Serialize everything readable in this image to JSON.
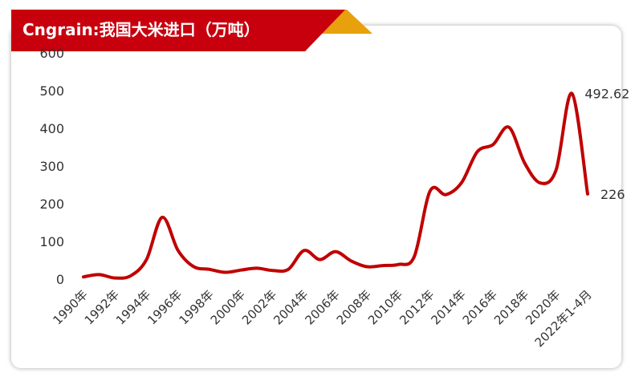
{
  "header": {
    "title": "Cngrain:我国大米进口（万吨）"
  },
  "colors": {
    "accent": "#c8000e",
    "accent_secondary": "#e8a10c",
    "line": "#c00000"
  },
  "chart_data": {
    "type": "line",
    "title": "Cngrain:我国大米进口（万吨）",
    "xlabel": "",
    "ylabel": "",
    "ylim": [
      0,
      600
    ],
    "yticks": [
      0,
      100,
      200,
      300,
      400,
      500,
      600
    ],
    "grid": false,
    "x_labels": [
      "1990年",
      "1992年",
      "1994年",
      "1996年",
      "1998年",
      "2000年",
      "2002年",
      "2004年",
      "2006年",
      "2008年",
      "2010年",
      "2012年",
      "2014年",
      "2016年",
      "2018年",
      "2020年",
      "2022年1-4月"
    ],
    "x": [
      "1990年",
      "1991年",
      "1992年",
      "1993年",
      "1994年",
      "1995年",
      "1996年",
      "1997年",
      "1998年",
      "1999年",
      "2000年",
      "2001年",
      "2002年",
      "2003年",
      "2004年",
      "2005年",
      "2006年",
      "2007年",
      "2008年",
      "2009年",
      "2010年",
      "2011年",
      "2012年",
      "2013年",
      "2014年",
      "2015年",
      "2016年",
      "2017年",
      "2018年",
      "2019年",
      "2020年",
      "2021年",
      "2022年1-4月"
    ],
    "series": [
      {
        "values": [
          6,
          12,
          3,
          9,
          52,
          164,
          76,
          33,
          26,
          18,
          24,
          29,
          23,
          26,
          76,
          52,
          73,
          48,
          33,
          36,
          39,
          60,
          234,
          224,
          256,
          338,
          357,
          403,
          308,
          255,
          290,
          492.62,
          226
        ]
      }
    ],
    "data_labels": [
      {
        "x": "2021年",
        "text": "492.62"
      },
      {
        "x": "2022年1-4月",
        "text": "226"
      }
    ]
  }
}
